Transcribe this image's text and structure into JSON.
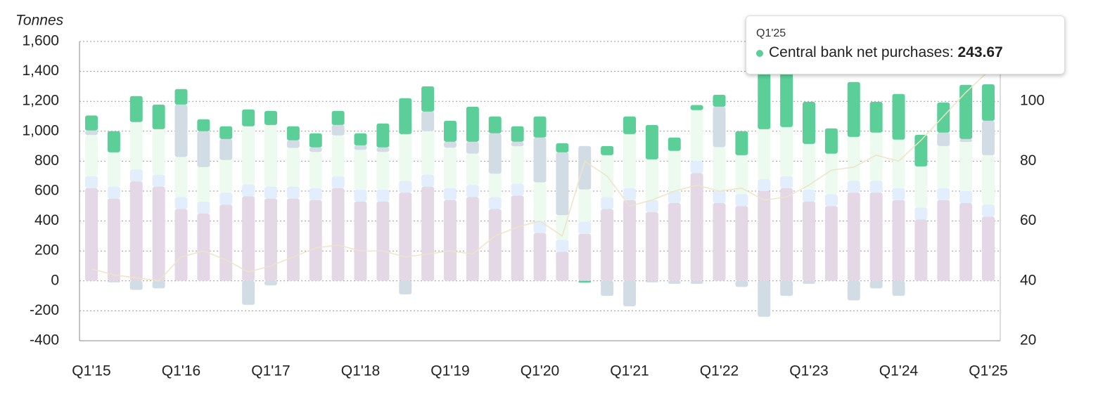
{
  "chart_data": {
    "type": "stacked-bar",
    "y_axis_label": "Tonnes",
    "categories": [
      "Q1'15",
      null,
      null,
      null,
      "Q1'16",
      null,
      null,
      null,
      "Q1'17",
      null,
      null,
      null,
      "Q1'18",
      null,
      null,
      null,
      "Q1'19",
      null,
      null,
      null,
      "Q1'20",
      null,
      null,
      null,
      "Q1'21",
      null,
      null,
      null,
      "Q1'22",
      null,
      null,
      null,
      "Q1'23",
      null,
      null,
      null,
      "Q1'24",
      null,
      null,
      null,
      "Q1'25"
    ],
    "ylim": [
      -400,
      1600
    ],
    "yticks": [
      {
        "value": -400,
        "label": "-400"
      },
      {
        "value": -200,
        "label": "-200"
      },
      0,
      200,
      400,
      600,
      800,
      {
        "value": 1000,
        "label": "1,000"
      },
      {
        "value": 1200,
        "label": "1,200"
      },
      {
        "value": 1400,
        "label": "1,400"
      },
      {
        "value": 1600,
        "label": "1,600"
      }
    ],
    "y2lim": [
      20,
      120
    ],
    "y2ticks": [
      20,
      40,
      60,
      80,
      100
    ],
    "grid": true,
    "series": [
      {
        "color": "#e4d8e6",
        "values": [
          620,
          550,
          665,
          630,
          480,
          450,
          510,
          565,
          550,
          550,
          540,
          620,
          530,
          530,
          590,
          630,
          540,
          560,
          480,
          570,
          320,
          195,
          315,
          480,
          540,
          460,
          520,
          720,
          520,
          500,
          600,
          620,
          530,
          500,
          590,
          590,
          540,
          410,
          540,
          520,
          430
        ]
      },
      {
        "color": "#e2eefb",
        "values": [
          80,
          80,
          80,
          80,
          80,
          80,
          80,
          80,
          80,
          80,
          80,
          80,
          80,
          80,
          80,
          80,
          80,
          80,
          80,
          80,
          80,
          80,
          80,
          80,
          80,
          80,
          80,
          80,
          80,
          80,
          80,
          80,
          80,
          80,
          80,
          80,
          80,
          80,
          80,
          80,
          80
        ]
      },
      {
        "color": "#edfaf0",
        "values": [
          275,
          229,
          316,
          304,
          268,
          230,
          218,
          388,
          412,
          259,
          242,
          272,
          266,
          252,
          311,
          291,
          270,
          210,
          156,
          250,
          258,
          164,
          216,
          280,
          361,
          272,
          269,
          341,
          294,
          260,
          334,
          328,
          305,
          270,
          292,
          321,
          324,
          275,
          281,
          328,
          330
        ]
      },
      {
        "color": "#d2dce5",
        "values": [
          30,
          -10,
          -60,
          -50,
          350,
          240,
          140,
          -160,
          -30,
          50,
          30,
          70,
          30,
          30,
          -90,
          130,
          40,
          80,
          270,
          30,
          300,
          420,
          290,
          -100,
          -170,
          -10,
          -20,
          -20,
          270,
          -40,
          -240,
          -100,
          -20,
          0,
          -130,
          -50,
          -100,
          0,
          90,
          20,
          230
        ]
      },
      {
        "name": "Central bank net purchases",
        "color": "#5ccf98",
        "values": [
          100,
          141,
          174,
          164,
          104,
          80,
          85,
          113,
          94,
          94,
          94,
          94,
          80,
          160,
          240,
          169,
          140,
          234,
          113,
          103,
          141,
          61,
          -12,
          61,
          118,
          230,
          89,
          34,
          80,
          160,
          400,
          380,
          282,
          169,
          367,
          206,
          305,
          211,
          201,
          362,
          243.67
        ]
      },
      {
        "type": "line",
        "axis": "y2",
        "color": "#efe4c6",
        "values": [
          44,
          42,
          41,
          40,
          48,
          50,
          47,
          43,
          45,
          48,
          51,
          52,
          50,
          50,
          48,
          49,
          50,
          49,
          55,
          58,
          60,
          55,
          80,
          75,
          65,
          67,
          70,
          72,
          70,
          71,
          67,
          68,
          72,
          77,
          78,
          82,
          80,
          87,
          95,
          103,
          110
        ]
      }
    ]
  }
}
